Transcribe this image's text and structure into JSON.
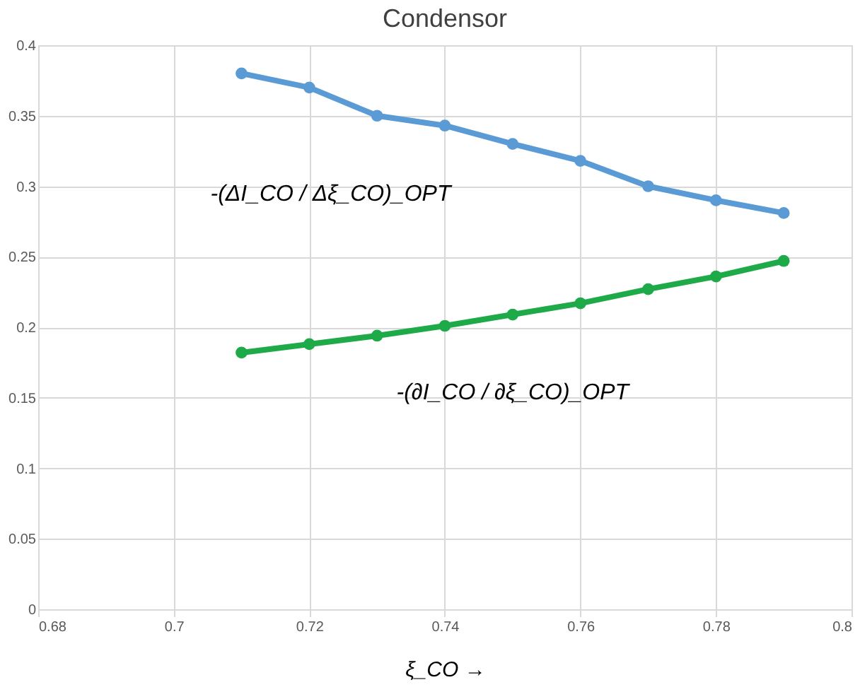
{
  "chart_data": {
    "type": "line",
    "title": "Condensor",
    "xlabel": "ξ_CO →",
    "x": [
      0.71,
      0.72,
      0.73,
      0.74,
      0.75,
      0.76,
      0.77,
      0.78,
      0.79
    ],
    "series": [
      {
        "name": "-(ΔI_CO / Δξ_CO)_OPT",
        "color": "#5b9bd5",
        "values": [
          0.38,
          0.37,
          0.35,
          0.343,
          0.33,
          0.318,
          0.3,
          0.29,
          0.281
        ]
      },
      {
        "name": "-(∂I_CO / ∂ξ_CO)_OPT",
        "color": "#1faa4a",
        "values": [
          0.182,
          0.188,
          0.194,
          0.201,
          0.209,
          0.217,
          0.227,
          0.236,
          0.247
        ]
      }
    ],
    "xlim": [
      0.68,
      0.8
    ],
    "xticks": [
      0.68,
      0.7,
      0.72,
      0.74,
      0.76,
      0.78,
      0.8
    ],
    "ylim": [
      0,
      0.4
    ],
    "yticks": [
      0,
      0.05,
      0.1,
      0.15,
      0.2,
      0.25,
      0.3,
      0.35,
      0.4
    ],
    "grid": true,
    "marker": "circle",
    "line_style": "solid"
  }
}
